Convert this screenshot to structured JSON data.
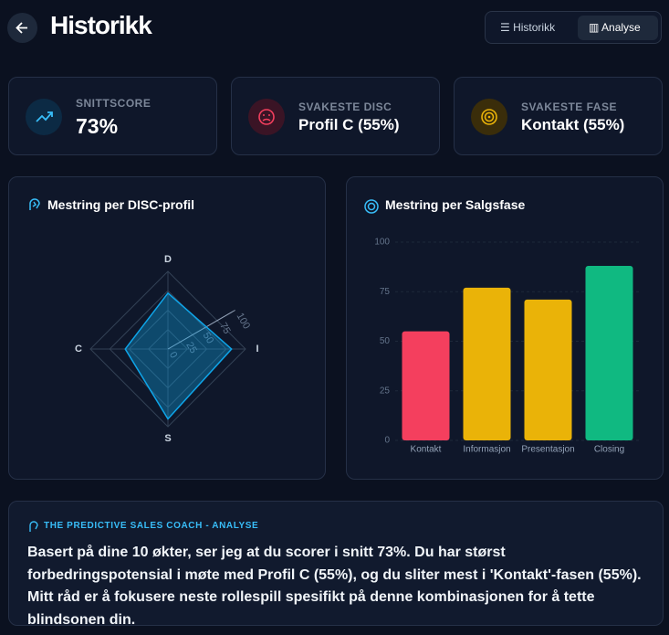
{
  "header": {
    "title": "Historikk",
    "tabs": [
      "Historikk",
      "Analyse"
    ]
  },
  "stats": [
    {
      "label": "SNITTSCORE",
      "value": "73%"
    },
    {
      "label": "SVAKESTE DISC",
      "value": "Profil C (55%)"
    },
    {
      "label": "SVAKESTE FASE",
      "value": "Kontakt (55%)"
    }
  ],
  "chart_data": [
    {
      "type": "radar",
      "title": "Mestring per DISC-profil",
      "categories": [
        "D",
        "I",
        "S",
        "C"
      ],
      "series": [
        {
          "color": "#0ea5e9",
          "values": [
            72,
            82,
            90,
            55
          ]
        }
      ],
      "rlim": [
        0,
        100
      ],
      "rticks": [
        0,
        25,
        50,
        75,
        100
      ]
    },
    {
      "type": "bar",
      "title": "Mestring per Salgsfase",
      "categories": [
        "Kontakt",
        "Informasjon",
        "Presentasjon",
        "Closing"
      ],
      "values": [
        55,
        77,
        71,
        88
      ],
      "colors": [
        "#f43f5e",
        "#eab308",
        "#eab308",
        "#10b981"
      ],
      "ylim": [
        0,
        100
      ],
      "yticks": [
        0,
        25,
        50,
        75,
        100
      ],
      "grid": true
    }
  ],
  "insight": {
    "heading": "THE PREDICTIVE SALES COACH - ANALYSE",
    "text": "Basert på dine 10 økter, ser jeg at du scorer i snitt 73%. Du har størst forbedringspotensial i møte med Profil C (55%), og du sliter mest i 'Kontakt'-fasen (55%). Mitt råd er å fokusere neste rollespill spesifikt på denne kombinasjonen for å tette blindsonen din."
  }
}
